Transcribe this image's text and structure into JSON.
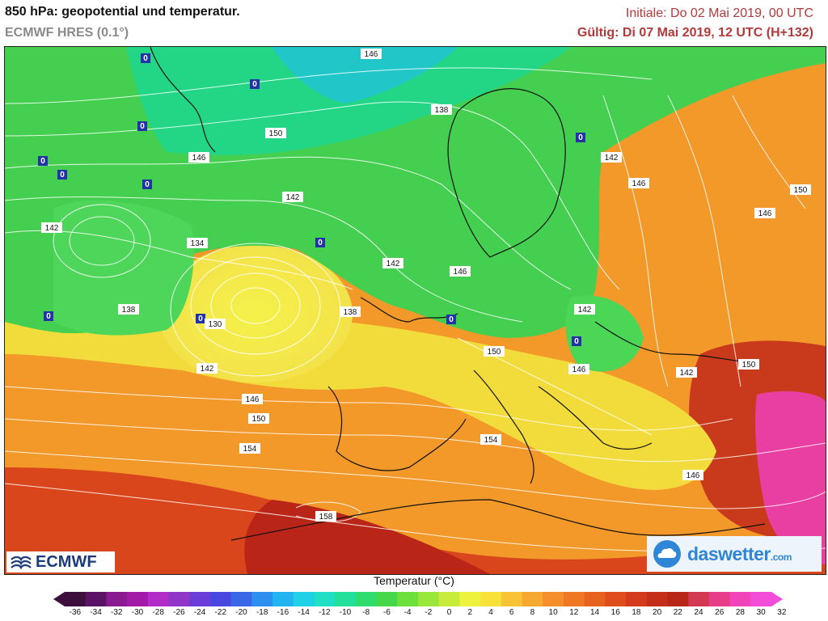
{
  "header": {
    "title": "850 hPa: geopotential und temperatur.",
    "model": "ECMWF HRES (0.1°)",
    "init": "Initiale: Do 02 Mai 2019, 00 UTC",
    "valid": "Gültig: Di 07 Mai 2019, 12 UTC (H+132)"
  },
  "map": {
    "isohypse_labels": [
      "146",
      "138",
      "150",
      "146",
      "142",
      "142",
      "134",
      "142",
      "146",
      "138",
      "130",
      "138",
      "150",
      "142",
      "146",
      "150",
      "154",
      "154",
      "158",
      "142",
      "146",
      "150",
      "146",
      "142",
      "146",
      "150",
      "142",
      "146"
    ],
    "freezing_marker": "0"
  },
  "logos": {
    "ecmwf": "ECMWF",
    "daswetter_main": "daswetter",
    "daswetter_tld": ".com"
  },
  "legend": {
    "title": "Temperatur (°C)",
    "ticks": [
      "-36",
      "-34",
      "-32",
      "-30",
      "-28",
      "-26",
      "-24",
      "-22",
      "-20",
      "-18",
      "-16",
      "-14",
      "-12",
      "-10",
      "-8",
      "-6",
      "-4",
      "-2",
      "0",
      "2",
      "4",
      "6",
      "8",
      "10",
      "12",
      "14",
      "16",
      "18",
      "20",
      "22",
      "24",
      "26",
      "28",
      "30",
      "32"
    ],
    "colors": [
      "#3c0f3c",
      "#5a1466",
      "#8a1a8f",
      "#a31aa8",
      "#b42cc8",
      "#9036c8",
      "#6a3cd8",
      "#4a46e0",
      "#3a66e8",
      "#2f8ff0",
      "#22b4f0",
      "#1fd0e6",
      "#1fe0c4",
      "#22e09a",
      "#2fdc6e",
      "#46d84a",
      "#6ee03c",
      "#9ae63a",
      "#c8ec3c",
      "#eef23c",
      "#f7e13a",
      "#f8c436",
      "#f7a82f",
      "#f48f2a",
      "#ef7824",
      "#e8621f",
      "#df4d1c",
      "#d33b1a",
      "#c52e19",
      "#b82617",
      "#d33a52",
      "#e83e8a",
      "#f044b8",
      "#f34cd8"
    ]
  }
}
